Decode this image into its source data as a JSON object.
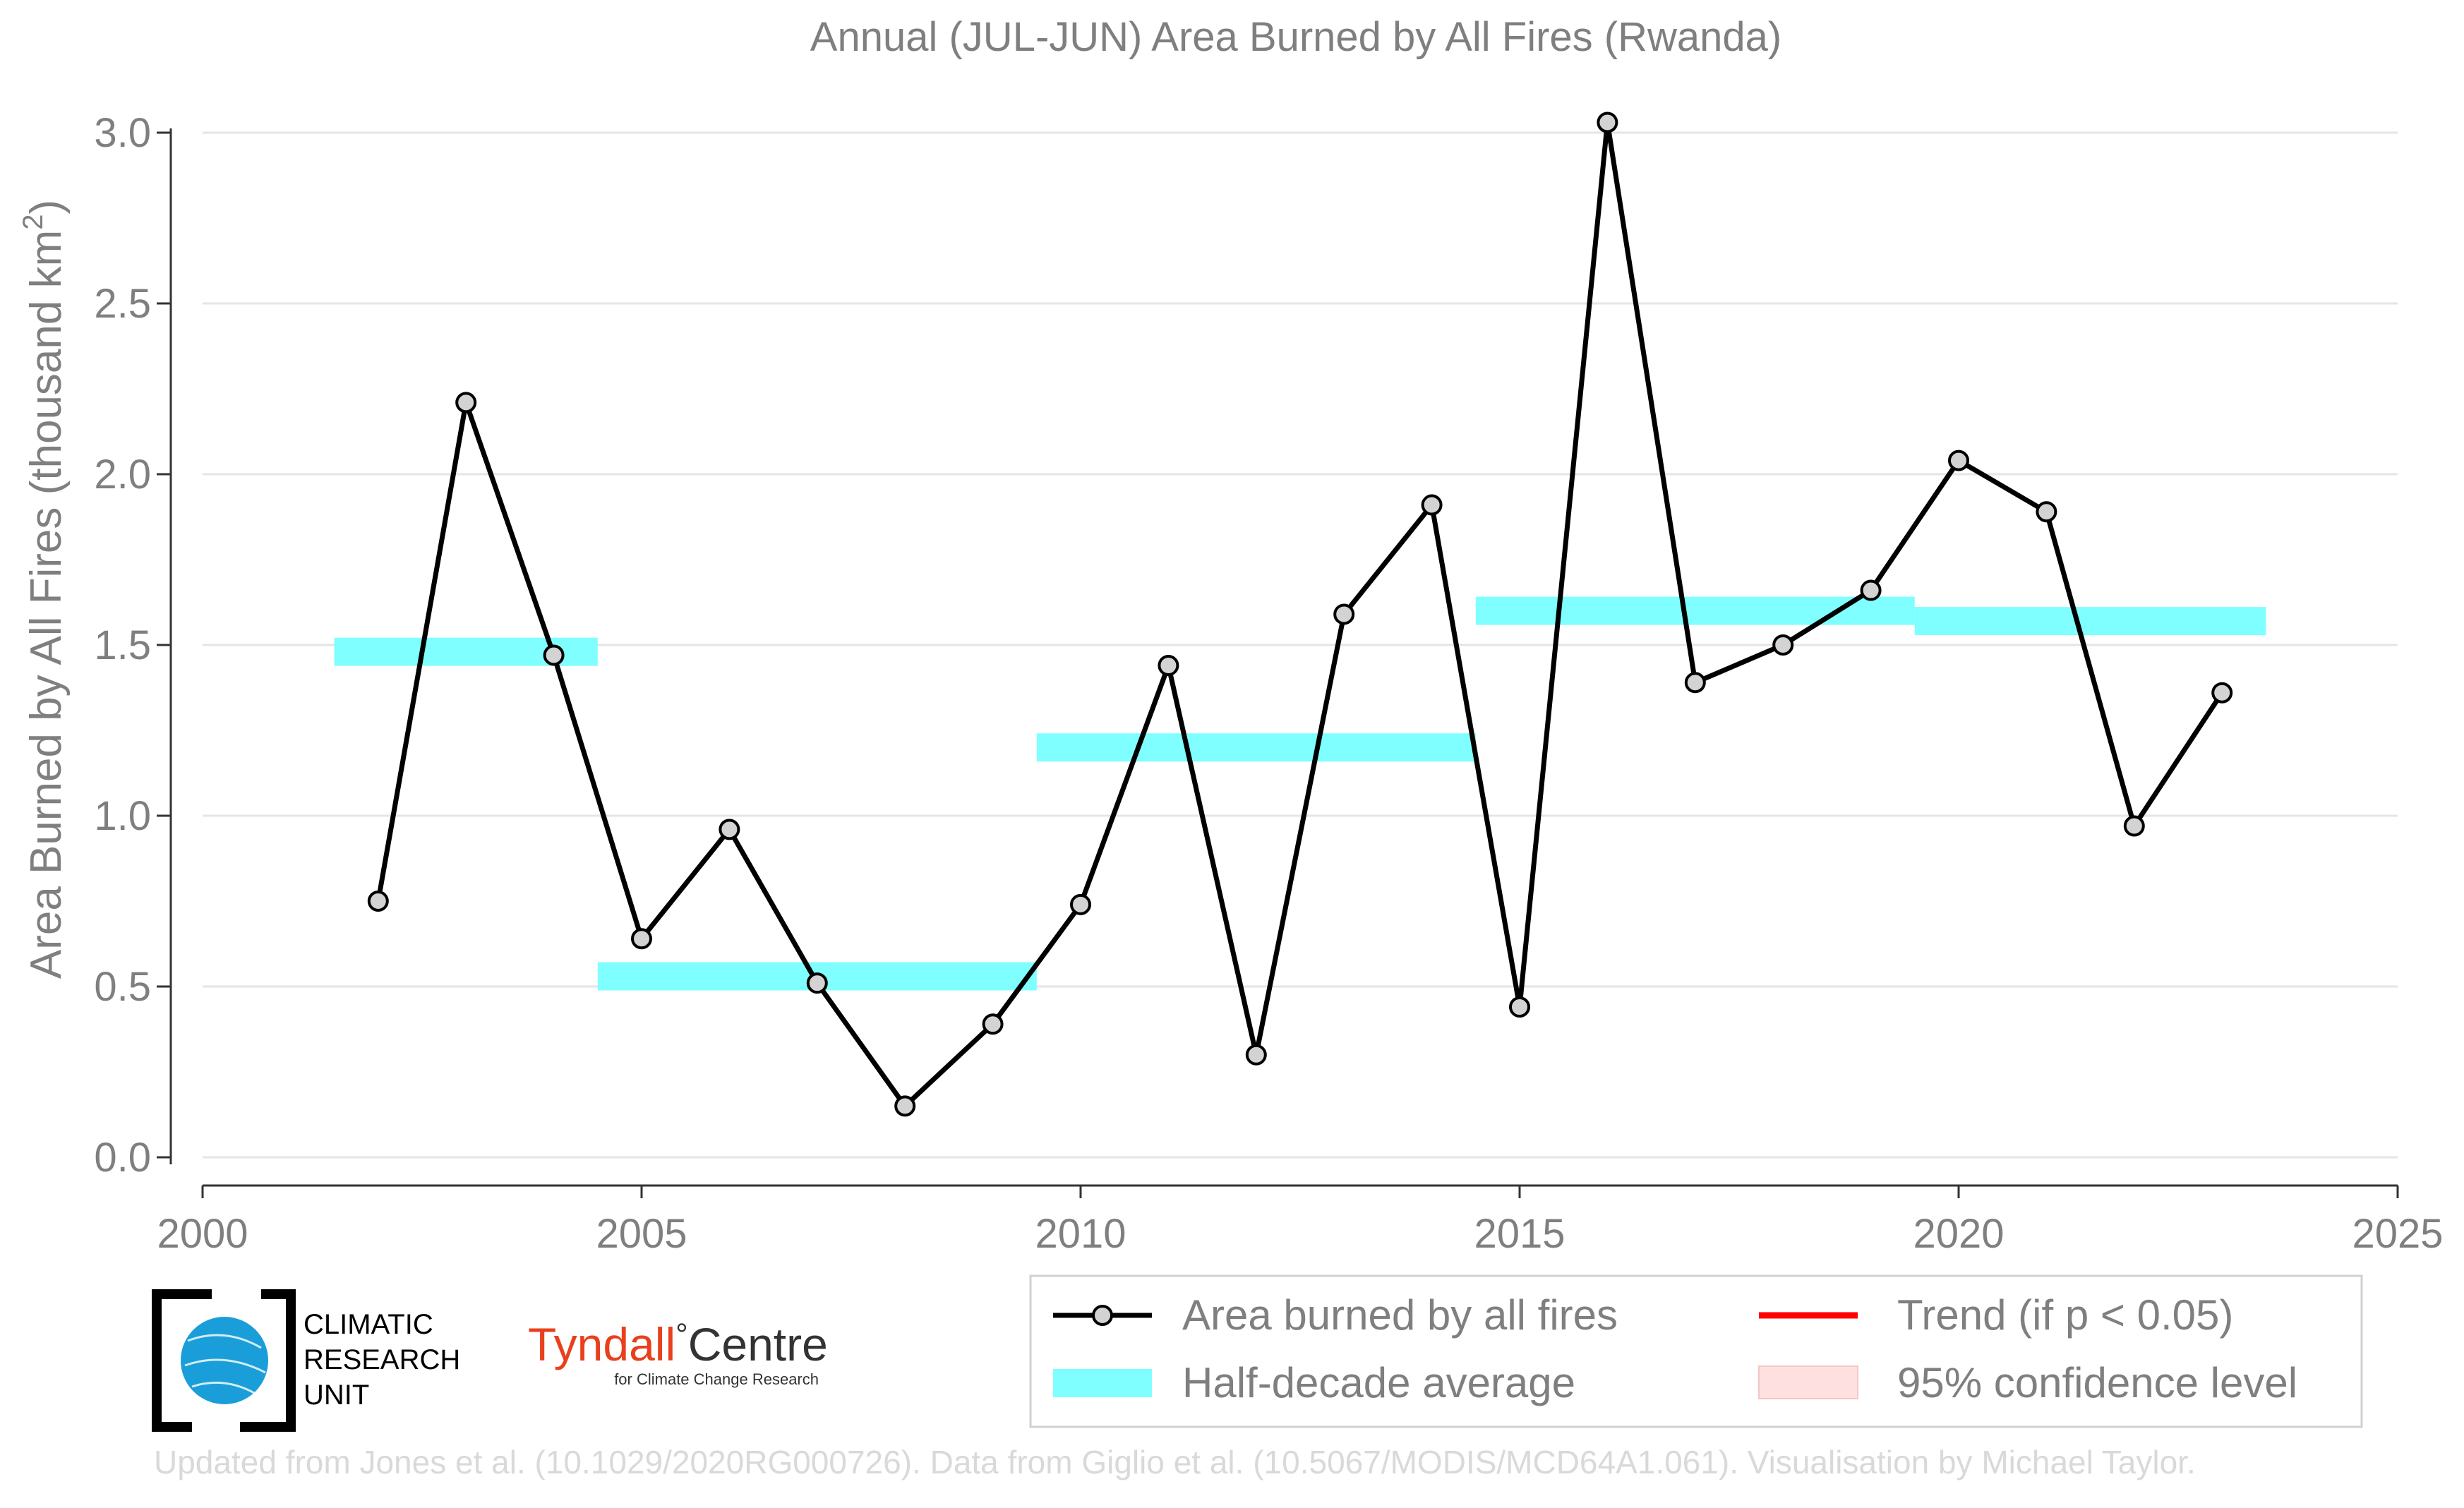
{
  "chart_data": {
    "type": "line",
    "title": "Annual (JUL-JUN) Area Burned by All Fires (Rwanda)",
    "xlabel": "",
    "ylabel": "Area Burned by All Fires (thousand km",
    "ylabel_superscript": "2",
    "ylabel_suffix": ")",
    "xlim": [
      2000,
      2025
    ],
    "ylim": [
      0,
      3.0
    ],
    "x_ticks": [
      2000,
      2005,
      2010,
      2015,
      2020,
      2025
    ],
    "y_ticks": [
      0.0,
      0.5,
      1.0,
      1.5,
      2.0,
      2.5,
      3.0
    ],
    "y_tick_labels": [
      "0.0",
      "0.5",
      "1.0",
      "1.5",
      "2.0",
      "2.5",
      "3.0"
    ],
    "grid": "horizontal",
    "series": [
      {
        "name": "Area burned by all fires",
        "x": [
          2002,
          2003,
          2004,
          2005,
          2006,
          2007,
          2008,
          2009,
          2010,
          2011,
          2012,
          2013,
          2014,
          2015,
          2016,
          2017,
          2018,
          2019,
          2020,
          2021,
          2022,
          2023
        ],
        "values": [
          0.75,
          2.21,
          1.47,
          0.64,
          0.96,
          0.51,
          0.15,
          0.39,
          0.74,
          1.44,
          0.3,
          1.59,
          1.91,
          0.44,
          3.03,
          1.39,
          1.5,
          1.66,
          2.04,
          1.89,
          0.97,
          1.36
        ],
        "color": "#000000",
        "marker_fill": "#d3d3d3"
      }
    ],
    "half_decade_average": {
      "name": "Half-decade average",
      "color": "#7fffff",
      "segments": [
        {
          "x_start": 2001.5,
          "x_end": 2004.5,
          "value": 1.48
        },
        {
          "x_start": 2004.5,
          "x_end": 2009.5,
          "value": 0.53
        },
        {
          "x_start": 2009.5,
          "x_end": 2014.5,
          "value": 1.2
        },
        {
          "x_start": 2014.5,
          "x_end": 2019.5,
          "value": 1.6
        },
        {
          "x_start": 2019.5,
          "x_end": 2023.5,
          "value": 1.57
        }
      ]
    },
    "legend": {
      "placement": "bottom-right",
      "items": [
        {
          "label": "Area burned by all fires",
          "kind": "line-marker",
          "color": "#000000"
        },
        {
          "label": "Trend (if p < 0.05)",
          "kind": "line",
          "color": "#ff0000"
        },
        {
          "label": "Half-decade average",
          "kind": "band",
          "color": "#7fffff"
        },
        {
          "label": "95% confidence level",
          "kind": "band",
          "color": "#ffe0e0"
        }
      ]
    }
  },
  "logos": {
    "cru": {
      "lines": [
        "CLIMATIC",
        "RESEARCH",
        "UNIT"
      ],
      "globe_color": "#1a9ed9"
    },
    "tyndall": {
      "name": "Tyndall",
      "degree": "°",
      "name2": "Centre",
      "subtitle": "for Climate Change Research",
      "name_color": "#e8401c"
    }
  },
  "footer": {
    "credit": "Updated from Jones et al. (10.1029/2020RG000726). Data from Giglio et al. (10.5067/MODIS/MCD64A1.061). Visualisation by Michael Taylor."
  },
  "colors": {
    "text_gray": "#7f7f7f",
    "grid": "#e5e5e5",
    "footer": "#d9d9d9"
  }
}
